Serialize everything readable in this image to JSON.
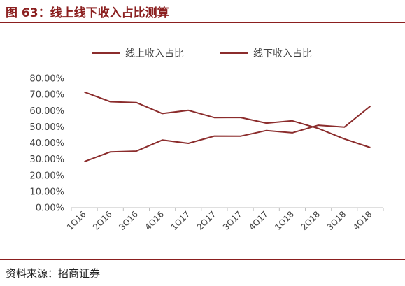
{
  "figure": {
    "title": "图 63：线上线下收入占比测算",
    "source": "资料来源：招商证券"
  },
  "colors": {
    "brand": "#8B1F1F",
    "series": "#8B2C2C",
    "axis": "#BFBFBF",
    "text": "#404040"
  },
  "chart_data": {
    "type": "line",
    "title": "",
    "xlabel": "",
    "ylabel": "",
    "categories": [
      "1Q16",
      "2Q16",
      "3Q16",
      "4Q16",
      "1Q17",
      "2Q17",
      "3Q17",
      "4Q17",
      "1Q18",
      "2Q18",
      "3Q18",
      "4Q18"
    ],
    "series": [
      {
        "name": "线上收入占比",
        "values": [
          28.5,
          34.5,
          35.0,
          41.8,
          39.8,
          44.3,
          44.2,
          47.7,
          46.3,
          51.0,
          49.8,
          62.8
        ]
      },
      {
        "name": "线下收入占比",
        "values": [
          71.5,
          65.5,
          65.0,
          58.2,
          60.2,
          55.7,
          55.8,
          52.3,
          53.7,
          49.0,
          42.5,
          37.2
        ]
      }
    ],
    "ylim": [
      0,
      80
    ],
    "yticks": [
      "0.00%",
      "10.00%",
      "20.00%",
      "30.00%",
      "40.00%",
      "50.00%",
      "60.00%",
      "70.00%",
      "80.00%"
    ],
    "grid": false,
    "legend": "top"
  }
}
